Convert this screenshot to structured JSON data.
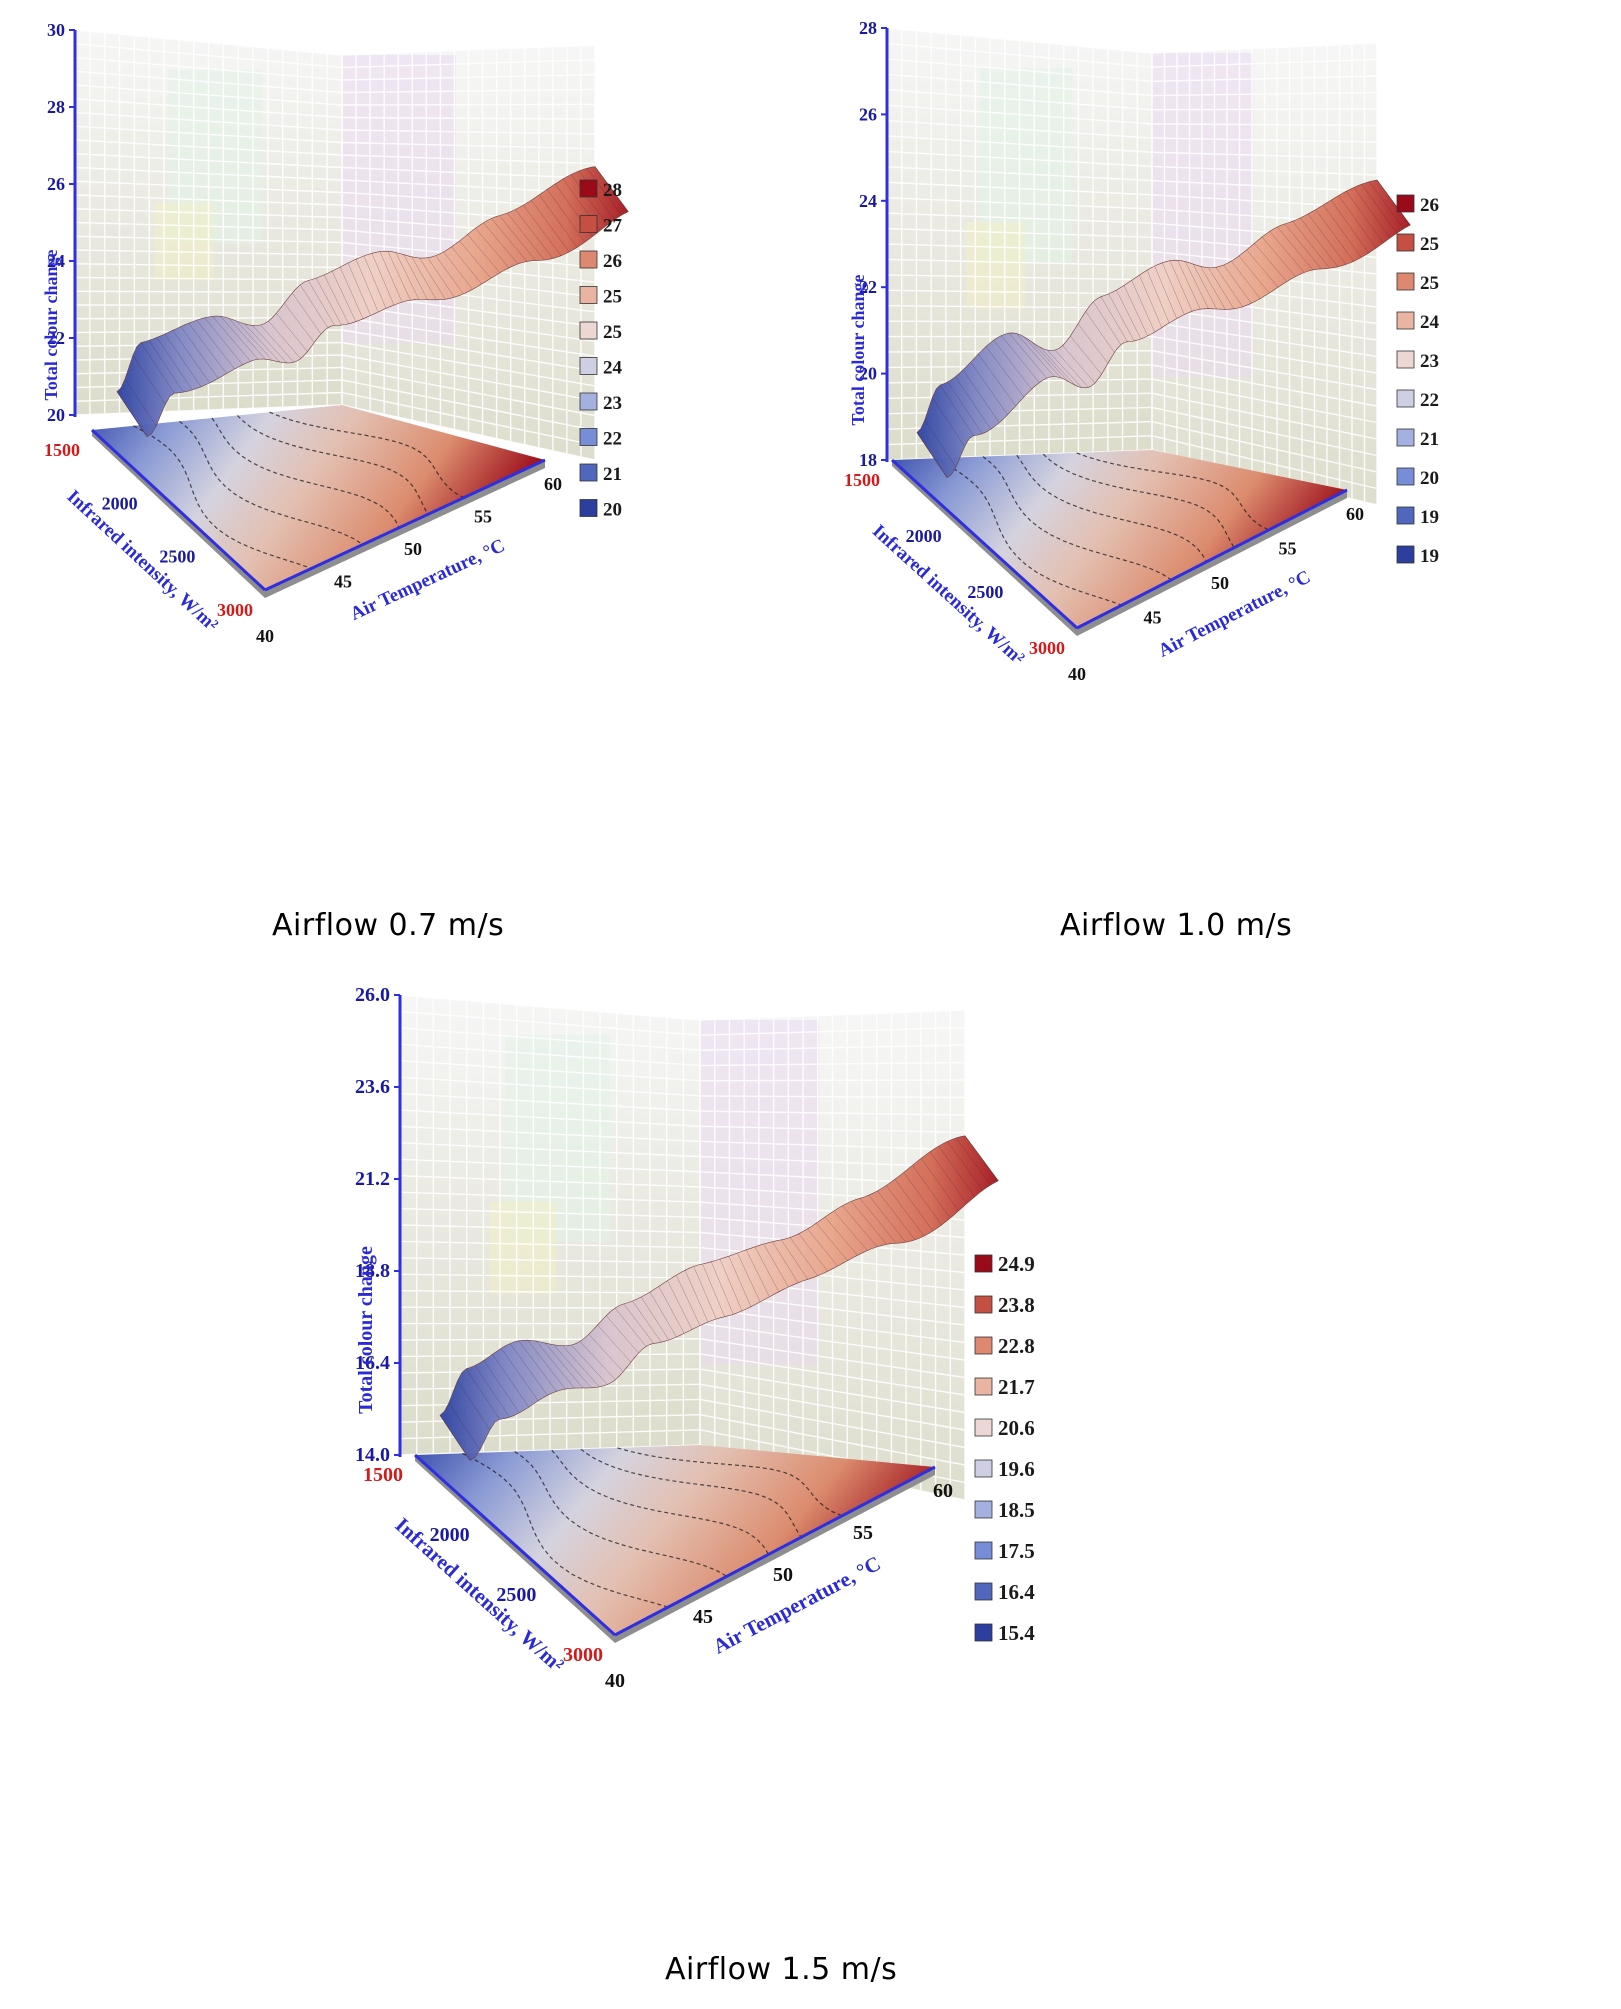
{
  "colors": {
    "axis_blue": "#2f2fe0",
    "red_tick": "#d31a1a",
    "cold": "#2b3b9a",
    "warm": "#9e0a18"
  },
  "panels": [
    {
      "caption": "Airflow 0.7 m/s"
    },
    {
      "caption": "Airflow 1.0 m/s"
    },
    {
      "caption": "Airflow 1.5 m/s"
    }
  ],
  "chart_data": [
    {
      "type": "surface3d",
      "zlabel": "Total colour change",
      "xlabel": "Air Temperature, °C",
      "ylabel": "Infrared intensity, W/m²",
      "z_ticks": [
        "20",
        "22",
        "24",
        "26",
        "28",
        "30"
      ],
      "zlim": [
        20,
        30
      ],
      "x_ticks": [
        "40",
        "45",
        "50",
        "55",
        "60"
      ],
      "y_ticks": [
        "1500",
        "2000",
        "2500",
        "3000"
      ],
      "legend": [
        "28",
        "27",
        "26",
        "25",
        "25",
        "24",
        "23",
        "22",
        "21",
        "20"
      ],
      "surface_profile": [
        {
          "x": 40,
          "z": 20.2
        },
        {
          "x": 41,
          "z": 22.8
        },
        {
          "x": 44,
          "z": 23.6
        },
        {
          "x": 46,
          "z": 22.6
        },
        {
          "x": 48,
          "z": 24.6
        },
        {
          "x": 51,
          "z": 25.4
        },
        {
          "x": 53,
          "z": 24.6
        },
        {
          "x": 56,
          "z": 26.2
        },
        {
          "x": 60,
          "z": 28.0
        }
      ]
    },
    {
      "type": "surface3d",
      "zlabel": "Total colour change",
      "xlabel": "Air Temperature, °C",
      "ylabel": "Infrared intensity, W/m²",
      "z_ticks": [
        "18",
        "20",
        "22",
        "24",
        "26",
        "28"
      ],
      "zlim": [
        18,
        28
      ],
      "x_ticks": [
        "40",
        "45",
        "50",
        "55",
        "60"
      ],
      "y_ticks": [
        "1500",
        "2000",
        "2500",
        "3000"
      ],
      "legend": [
        "26",
        "25",
        "25",
        "24",
        "23",
        "22",
        "21",
        "20",
        "19",
        "19"
      ],
      "surface_profile": [
        {
          "x": 40,
          "z": 18.4
        },
        {
          "x": 41,
          "z": 20.6
        },
        {
          "x": 44,
          "z": 22.6
        },
        {
          "x": 46,
          "z": 21.2
        },
        {
          "x": 48,
          "z": 23.4
        },
        {
          "x": 51,
          "z": 24.4
        },
        {
          "x": 53,
          "z": 23.6
        },
        {
          "x": 56,
          "z": 25.0
        },
        {
          "x": 60,
          "z": 26.2
        }
      ]
    },
    {
      "type": "surface3d",
      "zlabel": "Total colour change",
      "xlabel": "Air Temperature, °C",
      "ylabel": "Infrared intensity, W/m²",
      "z_ticks": [
        "14.0",
        "16.4",
        "18.8",
        "21.2",
        "23.6",
        "26.0"
      ],
      "zlim": [
        14.0,
        26.0
      ],
      "x_ticks": [
        "40",
        "45",
        "50",
        "55",
        "60"
      ],
      "y_ticks": [
        "1500",
        "2000",
        "2500",
        "3000"
      ],
      "legend": [
        "24.9",
        "23.8",
        "22.8",
        "21.7",
        "20.6",
        "19.6",
        "18.5",
        "17.5",
        "16.4",
        "15.4"
      ],
      "surface_profile": [
        {
          "x": 40,
          "z": 15.2
        },
        {
          "x": 41,
          "z": 17.6
        },
        {
          "x": 43,
          "z": 18.6
        },
        {
          "x": 45,
          "z": 17.8
        },
        {
          "x": 47,
          "z": 19.6
        },
        {
          "x": 50,
          "z": 20.8
        },
        {
          "x": 53,
          "z": 21.4
        },
        {
          "x": 56,
          "z": 22.8
        },
        {
          "x": 60,
          "z": 25.2
        }
      ]
    }
  ]
}
